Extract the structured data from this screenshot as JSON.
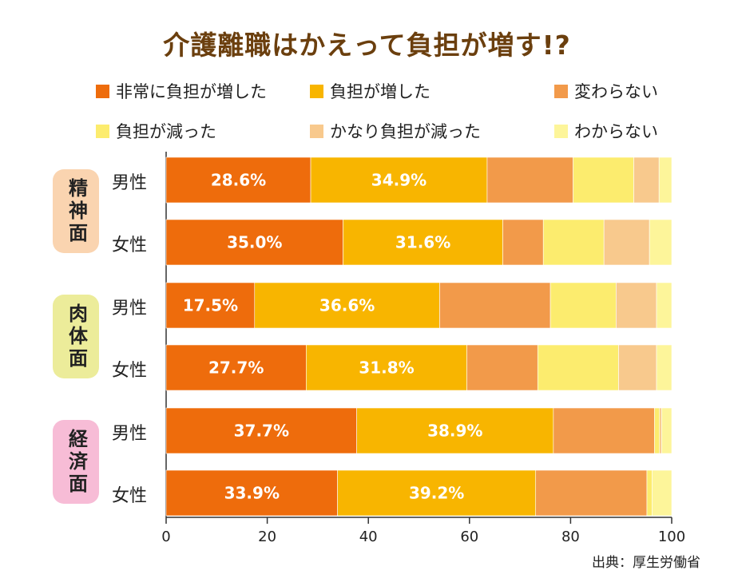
{
  "title": "介護離職はかえって負担が増す!?",
  "source": "出典：厚生労働省",
  "chart_data": {
    "type": "bar",
    "orientation": "horizontal",
    "stacked": true,
    "xlim": [
      0,
      100
    ],
    "xticks": [
      0,
      20,
      40,
      60,
      80,
      100
    ],
    "legend_position": "top",
    "categories_legend": [
      {
        "name": "非常に負担が増した",
        "color": "#ee6c0c"
      },
      {
        "name": "負担が増した",
        "color": "#f8b500"
      },
      {
        "name": "変わらない",
        "color": "#f29a4a"
      },
      {
        "name": "負担が減った",
        "color": "#fcec6e"
      },
      {
        "name": "かなり負担が減った",
        "color": "#f8c98d"
      },
      {
        "name": "わからない",
        "color": "#fdf59a"
      }
    ],
    "groups": [
      {
        "name": "精神面",
        "color": "#fad4b0",
        "rows": [
          {
            "label": "男性",
            "values": [
              28.6,
              34.9,
              17.0,
              12.0,
              5.0,
              2.5
            ]
          },
          {
            "label": "女性",
            "values": [
              35.0,
              31.6,
              8.0,
              12.0,
              9.0,
              4.4
            ]
          }
        ]
      },
      {
        "name": "肉体面",
        "color": "#ecec9a",
        "rows": [
          {
            "label": "男性",
            "values": [
              17.5,
              36.6,
              21.9,
              13.0,
              8.0,
              3.0
            ]
          },
          {
            "label": "女性",
            "values": [
              27.7,
              31.8,
              14.0,
              16.0,
              7.5,
              3.0
            ]
          }
        ]
      },
      {
        "name": "経済面",
        "color": "#f7bcd6",
        "rows": [
          {
            "label": "男性",
            "values": [
              37.7,
              38.9,
              20.0,
              1.0,
              0.4,
              2.0
            ]
          },
          {
            "label": "女性",
            "values": [
              33.9,
              39.2,
              22.0,
              1.0,
              0.0,
              3.9
            ]
          }
        ]
      }
    ],
    "data_labels": [
      "28.6%",
      "34.9%",
      "35.0%",
      "31.6%",
      "17.5%",
      "36.6%",
      "27.7%",
      "31.8%",
      "37.7%",
      "38.9%",
      "33.9%",
      "39.2%"
    ]
  }
}
